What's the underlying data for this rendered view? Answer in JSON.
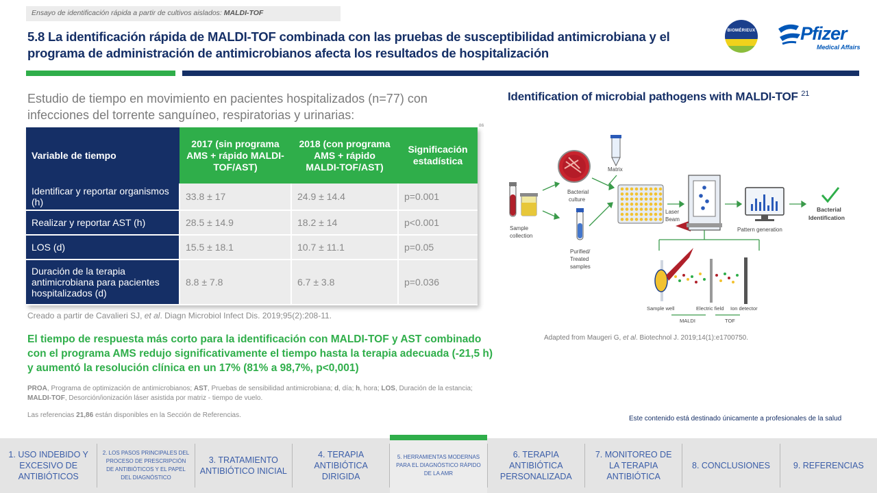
{
  "breadcrumb": {
    "prefix": "Ensayo de identificación rápida a partir de cultivos aislados: ",
    "bold": "MALDI-TOF"
  },
  "title": "5.8 La identificación rápida de MALDI-TOF combinada con las pruebas de susceptibilidad antimicrobiana y el programa de administración de antimicrobianos afecta los resultados de hospitalización",
  "logos": {
    "biomerieux": "BIOMÉRIEUX",
    "pfizer": "Pfizer",
    "pfizer_sub": "Medical Affairs"
  },
  "study_text": "Estudio de tiempo en movimiento en pacientes hospitalizados (n=77) con infecciones del torrente sanguíneo, respiratorias y urinarias:",
  "table_ref": "86",
  "table": {
    "headers": [
      "Variable de tiempo",
      "2017 (sin programa AMS + rápido MALDI-TOF/AST)",
      "2018 (con programa AMS + rápido MALDI-TOF/AST)",
      "Significación estadística"
    ],
    "rows": [
      {
        "label": "Identificar y reportar organismos (h)",
        "v2017": "33.8 ± 17",
        "v2018": "24.9 ± 14.4",
        "sig": "p=0.001"
      },
      {
        "label": "Realizar y reportar AST (h)",
        "v2017": "28.5 ± 14.9",
        "v2018": "18.2 ± 14",
        "sig": "p<0.001"
      },
      {
        "label": "LOS (d)",
        "v2017": "15.5 ± 18.1",
        "v2018": "10.7 ± 11.1",
        "sig": "p=0.05"
      },
      {
        "label": "Duración de la terapia antimicrobiana para pacientes hospitalizados (d)",
        "v2017": "8.8 ± 7.8",
        "v2018": "6.7 ± 3.8",
        "sig": "p=0.036"
      }
    ]
  },
  "created": {
    "prefix": "Creado a partir de Cavalieri SJ, ",
    "italic": "et al",
    "suffix": ". Diagn Microbiol Infect Dis. 2019;95(2):208-11."
  },
  "highlight": "El tiempo de respuesta más corto para la identificación con MALDI-TOF y AST combinado con el programa AMS redujo significativamente el tiempo hasta la terapia adecuada (-21,5 h) y aumentó la resolución clínica en un 17% (81% a 98,7%, p<0,001)",
  "abbreviations": [
    {
      "term": "PROA",
      "def": ", Programa de optimización de antimicrobianos; "
    },
    {
      "term": "AST",
      "def": ", Pruebas de sensibilidad antimicrobiana; "
    },
    {
      "term": "d",
      "def": ", día; "
    },
    {
      "term": "h",
      "def": ", hora; "
    },
    {
      "term": "LOS",
      "def": ", Duración de la estancia; "
    },
    {
      "term": "MALDI-TOF",
      "def": ", Desorción/ionización láser asistida por matriz - tiempo de vuelo."
    }
  ],
  "references": {
    "prefix": "Las referencias ",
    "bold": "21,86",
    "suffix": " están disponibles en la Sección de Referencias."
  },
  "right_panel": {
    "title": "Identification of microbial pathogens with MALDI-TOF",
    "title_sup": "21",
    "diagram_labels": {
      "sample_collection": [
        "Sample",
        "collection"
      ],
      "bacterial_culture": [
        "Bacterial",
        "culture"
      ],
      "matrix": "Matrix",
      "purified": [
        "Purified/",
        "Treated",
        "samples"
      ],
      "laser_beam": [
        "Laser",
        "Beam"
      ],
      "pattern_generation": "Pattern generation",
      "bacterial_identification": [
        "Bacterial",
        "Identification"
      ],
      "sample_well": "Sample well",
      "electric_field": "Electric field",
      "ion_detector": "Ion detector",
      "maldi": "MALDI",
      "tof": "TOF"
    },
    "adapted": {
      "prefix": "Adapted from Maugeri G, ",
      "italic": "et al",
      "suffix": ". Biotechnol J. 2019;14(1):e1700750."
    }
  },
  "disclaimer": "Este contenido está destinado únicamente a profesionales de la salud",
  "nav": [
    {
      "label": "1. USO INDEBIDO Y EXCESIVO DE ANTIBIÓTICOS",
      "active": false,
      "small": false
    },
    {
      "label": "2. LOS PASOS PRINCIPALES DEL PROCESO DE PRESCRIPCIÓN DE ANTIBIÓTICOS Y EL PAPEL DEL DIAGNÓSTICO",
      "active": false,
      "small": true
    },
    {
      "label": "3. TRATAMIENTO ANTIBIÓTICO INICIAL",
      "active": false,
      "small": false
    },
    {
      "label": "4. TERAPIA ANTIBIÓTICA DIRIGIDA",
      "active": false,
      "small": false
    },
    {
      "label": "5. HERRAMIENTAS MODERNAS PARA EL DIAGNÓSTICO RÁPIDO DE LA AMR",
      "active": true,
      "small": true
    },
    {
      "label": "6. TERAPIA ANTIBIÓTICA PERSONALIZADA",
      "active": false,
      "small": false
    },
    {
      "label": "7. MONITOREO DE LA TERAPIA ANTIBIÓTICA",
      "active": false,
      "small": false
    },
    {
      "label": "8. CONCLUSIONES",
      "active": false,
      "small": false
    },
    {
      "label": "9. REFERENCIAS",
      "active": false,
      "small": false
    }
  ],
  "colors": {
    "navy": "#152f66",
    "green": "#2fae4a",
    "nav_text": "#3a5da8"
  }
}
